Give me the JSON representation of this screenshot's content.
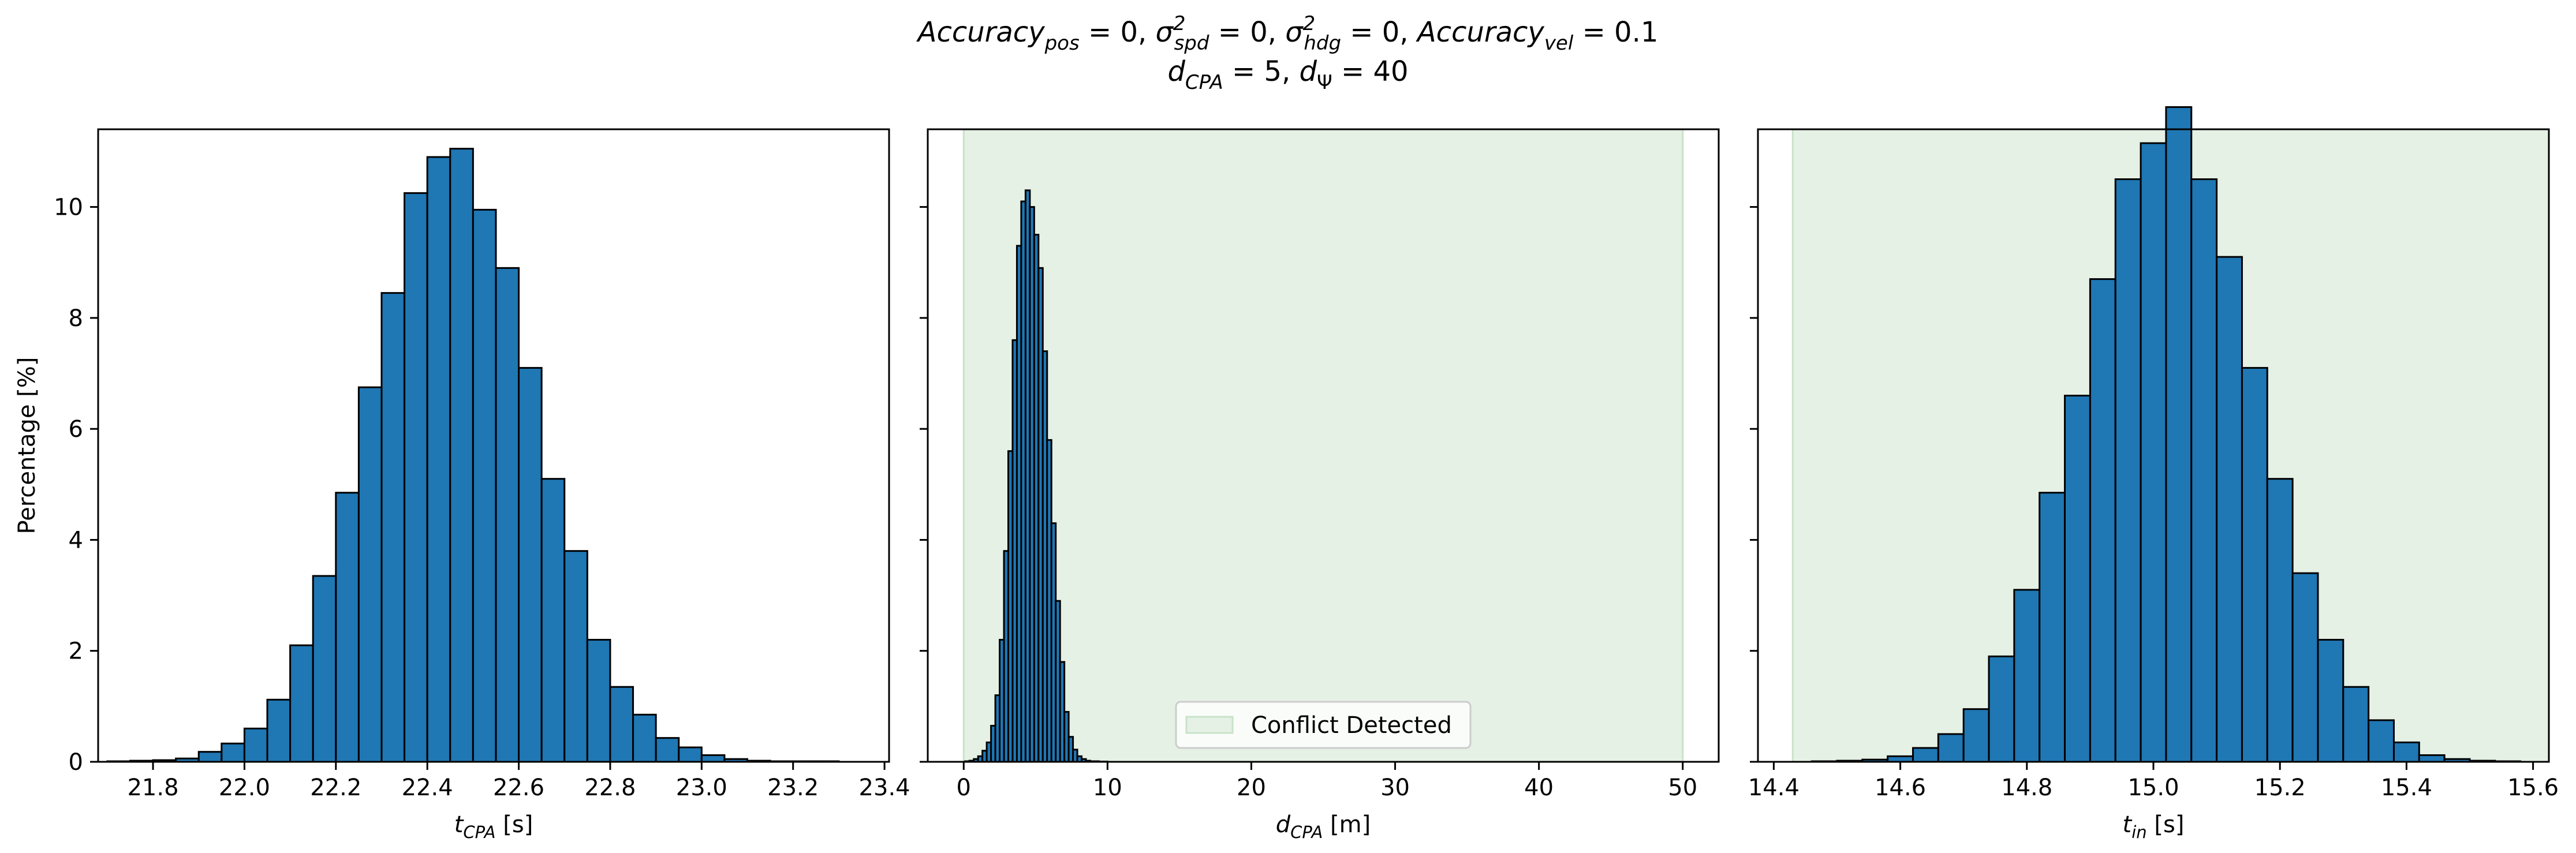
{
  "figure": {
    "title_line1": "Accuracy_pos = 0, σ²_spd = 0, σ²_hdg = 0, Accuracy_vel = 0.1",
    "title_line2": "d_CPA = 5, d_Ψ = 40"
  },
  "colors": {
    "bar_fill": "#1f77b4",
    "bar_edge": "#000000",
    "conflict_fill": "#e5f1e5",
    "conflict_edge": "#c9e2c9"
  },
  "chart_data": [
    {
      "type": "bar",
      "subtype": "histogram",
      "xlabel_main": "t",
      "xlabel_sub": "CPA",
      "xlabel_unit": " [s]",
      "ylabel": "Percentage [%]",
      "xlim": [
        21.68,
        23.41
      ],
      "ylim": [
        0,
        11.4
      ],
      "xticks": [
        21.8,
        22.0,
        22.2,
        22.4,
        22.6,
        22.8,
        23.0,
        23.2,
        23.4
      ],
      "xtick_labels": [
        "21.8",
        "22.0",
        "22.2",
        "22.4",
        "22.6",
        "22.8",
        "23.0",
        "23.2",
        "23.4"
      ],
      "yticks": [
        0,
        2,
        4,
        6,
        8,
        10
      ],
      "ytick_labels": [
        "0",
        "2",
        "4",
        "6",
        "8",
        "10"
      ],
      "bin_edges": [
        21.7,
        21.75,
        21.8,
        21.85,
        21.9,
        21.95,
        22.0,
        22.05,
        22.1,
        22.15,
        22.2,
        22.25,
        22.3,
        22.35,
        22.4,
        22.45,
        22.5,
        22.55,
        22.6,
        22.65,
        22.7,
        22.75,
        22.8,
        22.85,
        22.9,
        22.95,
        23.0,
        23.05,
        23.1,
        23.15,
        23.2,
        23.25,
        23.3
      ],
      "values": [
        0.01,
        0.02,
        0.03,
        0.06,
        0.18,
        0.33,
        0.6,
        1.12,
        2.1,
        3.35,
        4.85,
        6.75,
        8.45,
        10.25,
        10.9,
        11.05,
        9.95,
        8.9,
        7.1,
        5.1,
        3.8,
        2.2,
        1.35,
        0.85,
        0.43,
        0.26,
        0.12,
        0.05,
        0.02,
        0.01,
        0.01,
        0.01
      ],
      "conflict_region": null,
      "legend": null
    },
    {
      "type": "bar",
      "subtype": "histogram",
      "xlabel_main": "d",
      "xlabel_sub": "CPA",
      "xlabel_unit": " [m]",
      "ylabel": "",
      "xlim": [
        -2.5,
        52.5
      ],
      "ylim": [
        0,
        11.4
      ],
      "xticks": [
        0,
        10,
        20,
        30,
        40,
        50
      ],
      "xtick_labels": [
        "0",
        "10",
        "20",
        "30",
        "40",
        "50"
      ],
      "yticks": [
        0,
        2,
        4,
        6,
        8,
        10
      ],
      "ytick_labels": [
        "",
        "",
        "",
        "",
        "",
        ""
      ],
      "bin_edges": [
        0.1,
        0.4,
        0.7,
        1.0,
        1.3,
        1.6,
        1.9,
        2.2,
        2.5,
        2.8,
        3.1,
        3.4,
        3.7,
        4.0,
        4.3,
        4.6,
        4.9,
        5.2,
        5.5,
        5.8,
        6.1,
        6.4,
        6.7,
        7.0,
        7.3,
        7.6,
        7.9,
        8.2,
        8.5,
        8.8,
        9.1,
        9.4,
        9.7,
        10.0
      ],
      "values": [
        0.01,
        0.02,
        0.05,
        0.1,
        0.2,
        0.35,
        0.65,
        1.2,
        2.2,
        3.8,
        5.6,
        7.6,
        9.3,
        10.1,
        10.3,
        10.0,
        9.5,
        8.9,
        7.4,
        5.8,
        4.3,
        2.9,
        1.8,
        0.9,
        0.45,
        0.22,
        0.1,
        0.05,
        0.02,
        0.01,
        0.01,
        0.005,
        0.005
      ],
      "conflict_region": [
        0,
        50
      ],
      "legend": {
        "label": "Conflict Detected",
        "position": "lower center"
      }
    },
    {
      "type": "bar",
      "subtype": "histogram",
      "xlabel_main": "t",
      "xlabel_sub": "in",
      "xlabel_unit": " [s]",
      "ylabel": "",
      "xlim": [
        14.375,
        15.625
      ],
      "ylim": [
        0,
        11.4
      ],
      "xticks": [
        14.4,
        14.6,
        14.8,
        15.0,
        15.2,
        15.4,
        15.6
      ],
      "xtick_labels": [
        "14.4",
        "14.6",
        "14.8",
        "15.0",
        "15.2",
        "15.4",
        "15.6"
      ],
      "yticks": [
        0,
        2,
        4,
        6,
        8,
        10
      ],
      "ytick_labels": [
        "",
        "",
        "",
        "",
        "",
        ""
      ],
      "bin_edges": [
        14.46,
        14.5,
        14.54,
        14.58,
        14.62,
        14.66,
        14.7,
        14.74,
        14.78,
        14.82,
        14.86,
        14.9,
        14.94,
        14.98,
        15.02,
        15.06,
        15.1,
        15.14,
        15.18,
        15.22,
        15.26,
        15.3,
        15.34,
        15.38,
        15.42,
        15.46,
        15.5,
        15.54,
        15.58
      ],
      "values": [
        0.01,
        0.02,
        0.04,
        0.1,
        0.25,
        0.5,
        0.95,
        1.9,
        3.1,
        4.85,
        6.6,
        8.7,
        10.5,
        11.15,
        11.8,
        10.5,
        9.1,
        7.1,
        5.1,
        3.4,
        2.2,
        1.35,
        0.75,
        0.35,
        0.12,
        0.05,
        0.02,
        0.01
      ],
      "conflict_region": [
        14.43,
        15.75
      ],
      "legend": null
    }
  ]
}
